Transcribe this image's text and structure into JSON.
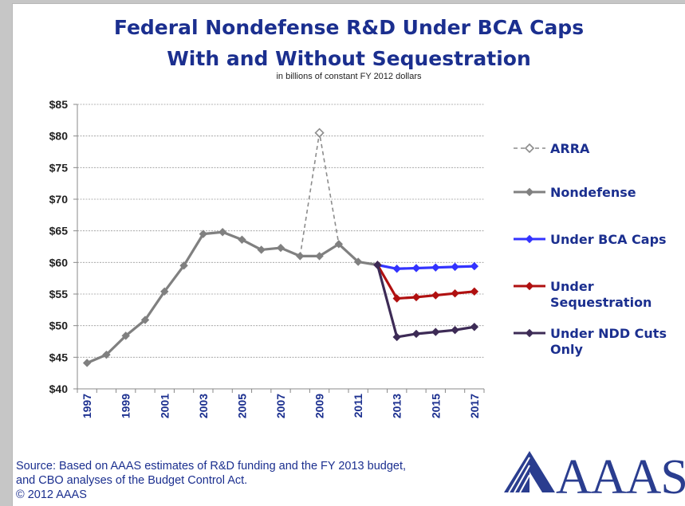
{
  "colors": {
    "title": "#1b2f8f",
    "arra": "#8c8c8c",
    "nondefense": "#808080",
    "bca_caps": "#3333ff",
    "sequestration": "#b01010",
    "ndd_cuts": "#3d2b56",
    "logo": "#2a3d8f"
  },
  "header": {
    "title_line1": "Federal Nondefense R&D Under BCA Caps",
    "title_line2": "With and Without Sequestration",
    "subtitle": "in billions of constant FY 2012 dollars"
  },
  "footer": {
    "source_line1": "Source: Based on AAAS estimates of R&D funding and the FY 2013 budget,",
    "source_line2": "and CBO analyses of the Budget Control Act.",
    "copyright": "© 2012 AAAS",
    "logo_text": "AAAS"
  },
  "chart_data": {
    "type": "line",
    "title": "Federal Nondefense R&D Under BCA Caps With and Without Sequestration",
    "subtitle": "in billions of constant FY 2012 dollars",
    "ylim": [
      40,
      85
    ],
    "yticks": [
      "$40",
      "$45",
      "$50",
      "$55",
      "$60",
      "$65",
      "$70",
      "$75",
      "$80",
      "$85"
    ],
    "x_tick_labels": [
      "1997",
      "1999",
      "2001",
      "2003",
      "2005",
      "2007",
      "2009",
      "2011",
      "2013",
      "2015",
      "2017"
    ],
    "grid": true,
    "legend_position": "right",
    "series": [
      {
        "name": "ARRA",
        "style": "dashed",
        "marker": "hollow-diamond",
        "x": [
          2008,
          2009,
          2010
        ],
        "values": [
          61.0,
          80.5,
          62.9
        ]
      },
      {
        "name": "Nondefense",
        "style": "solid",
        "marker": "diamond",
        "x": [
          1997,
          1998,
          1999,
          2000,
          2001,
          2002,
          2003,
          2004,
          2005,
          2006,
          2007,
          2008,
          2009,
          2010,
          2011,
          2012
        ],
        "values": [
          44.1,
          45.4,
          48.4,
          50.9,
          55.4,
          59.5,
          64.5,
          64.8,
          63.6,
          62.0,
          62.3,
          61.0,
          61.0,
          62.9,
          60.1,
          59.6
        ]
      },
      {
        "name": "Under BCA Caps",
        "style": "solid",
        "marker": "diamond",
        "x": [
          2012,
          2013,
          2014,
          2015,
          2016,
          2017
        ],
        "values": [
          59.6,
          59.0,
          59.1,
          59.2,
          59.3,
          59.4
        ]
      },
      {
        "name": "Under Sequestration",
        "style": "solid",
        "marker": "diamond",
        "x": [
          2012,
          2013,
          2014,
          2015,
          2016,
          2017
        ],
        "values": [
          59.6,
          54.3,
          54.5,
          54.8,
          55.1,
          55.4
        ]
      },
      {
        "name": "Under NDD Cuts Only",
        "style": "solid",
        "marker": "diamond",
        "x": [
          2012,
          2013,
          2014,
          2015,
          2016,
          2017
        ],
        "values": [
          59.6,
          48.2,
          48.7,
          49.0,
          49.3,
          49.8
        ]
      }
    ]
  }
}
